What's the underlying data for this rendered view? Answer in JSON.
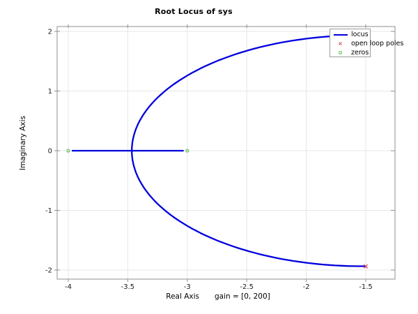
{
  "figure": {
    "title": "Root Locus of sys",
    "background_color": "#ffffff"
  },
  "chart_data": {
    "type": "line",
    "subtype": "root-locus",
    "title": "Root Locus of sys",
    "xlabel": "Real Axis",
    "gain_annotation": "gain = [0, 200]",
    "ylabel": "Imaginary Axis",
    "xlim": [
      -4.09,
      -1.25
    ],
    "ylim": [
      -2.15,
      2.08
    ],
    "xticks": [
      -4,
      -3.5,
      -3,
      -2.5,
      -2,
      -1.5
    ],
    "yticks": [
      2,
      1,
      0,
      -1,
      -2
    ],
    "grid": true,
    "legend_position": "top-right",
    "legend": [
      "locus",
      "open loop poles",
      "zeros"
    ],
    "series": [
      {
        "name": "locus",
        "color": "#0000dd",
        "branches": [
          {
            "kind": "segment",
            "from": [
              -3.97,
              0
            ],
            "to": [
              -3.03,
              0
            ]
          },
          {
            "kind": "circular-arc",
            "center": [
              -1.53,
              0
            ],
            "radius": 1.936,
            "start_angle_deg": 89.2,
            "end_angle_deg": 270.8,
            "breakin_point": [
              -3.46,
              0
            ]
          }
        ]
      },
      {
        "name": "open loop poles",
        "marker": "x",
        "color": "#cc4455",
        "points": [
          [
            -1.5,
            1.94
          ],
          [
            -1.5,
            -1.94
          ]
        ]
      },
      {
        "name": "zeros",
        "marker": "o",
        "color": "#6cc26c",
        "points": [
          [
            -4,
            0
          ],
          [
            -3,
            0
          ]
        ]
      }
    ]
  },
  "axis": {
    "xtick_labels": [
      "-4",
      "-3.5",
      "-3",
      "-2.5",
      "-2",
      "-1.5"
    ],
    "ytick_labels": [
      "2",
      "1",
      "0",
      "-1",
      "-2"
    ],
    "grid_color": "#e7e7e7",
    "border_color": "#8f8f8f",
    "tick_label_color": "#1a1a1a"
  }
}
